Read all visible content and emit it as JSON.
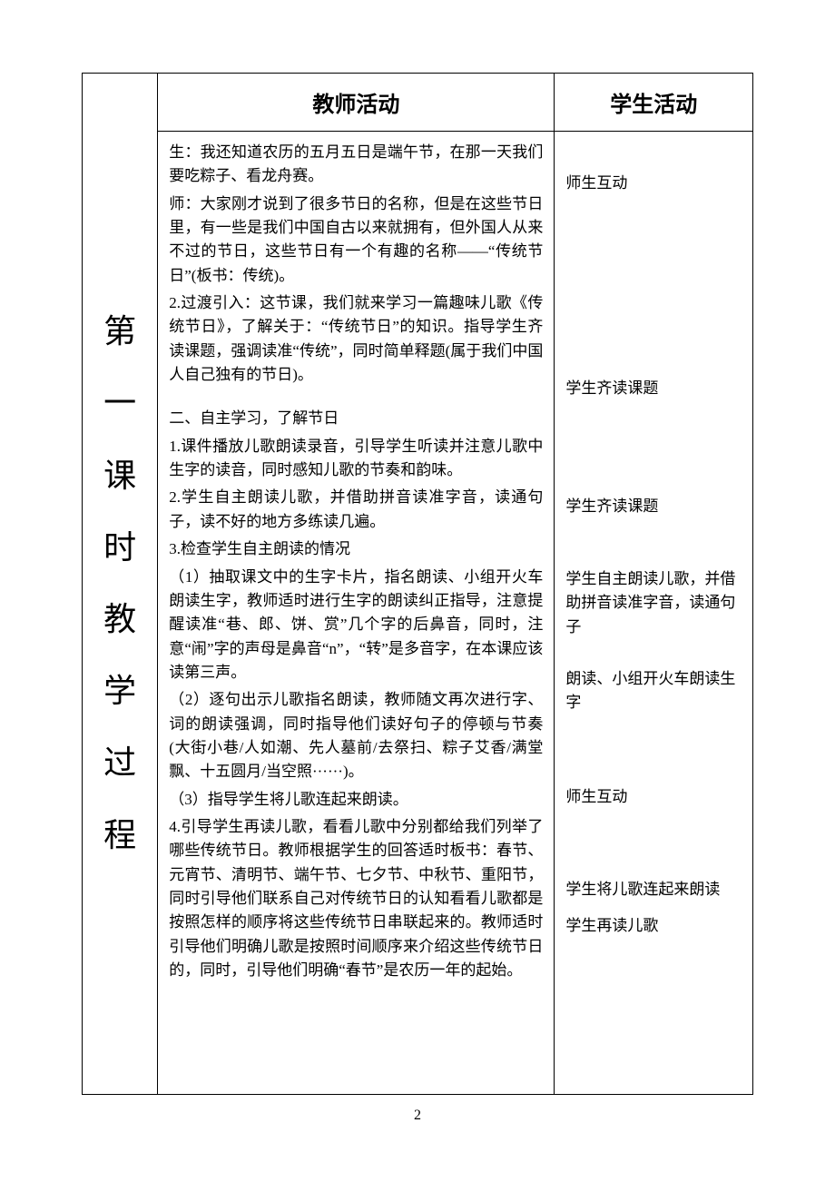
{
  "headers": {
    "side": "第一课时教学过程",
    "teacher": "教师活动",
    "student": "学生活动"
  },
  "teacher": {
    "p1": "生：我还知道农历的五月五日是端午节，在那一天我们要吃粽子、看龙舟赛。",
    "p2": "师：大家刚才说到了很多节日的名称，但是在这些节日里，有一些是我们中国自古以来就拥有，但外国人从来不过的节日，这些节日有一个有趣的名称——“传统节日”(板书：传统)。",
    "p3": "2.过渡引入：这节课，我们就来学习一篇趣味儿歌《传统节日》，了解关于：“传统节日”的知识。指导学生齐读课题，强调读准“传统”，同时简单释题(属于我们中国人自己独有的节日)。",
    "p4": "二、自主学习，了解节日",
    "p5": "1.课件播放儿歌朗读录音，引导学生听读并注意儿歌中生字的读音，同时感知儿歌的节奏和韵味。",
    "p6": "2.学生自主朗读儿歌，并借助拼音读准字音，读通句子，读不好的地方多练读几遍。",
    "p7": "3.检查学生自主朗读的情况",
    "p8": "（1）抽取课文中的生字卡片，指名朗读、小组开火车朗读生字，教师适时进行生字的朗读纠正指导，注意提醒读准“巷、郎、饼、赏”几个字的后鼻音，同时，注意“闹”字的声母是鼻音“n”，“转”是多音字，在本课应该读第三声。",
    "p9": "（2）逐句出示儿歌指名朗读，教师随文再次进行字、词的朗读强调，同时指导他们读好句子的停顿与节奏(大街小巷/人如潮、先人墓前/去祭扫、粽子艾香/满堂飘、十五圆月/当空照······)。",
    "p10": "（3）指导学生将儿歌连起来朗读。",
    "p11": "4.引导学生再读儿歌，看看儿歌中分别都给我们列举了哪些传统节日。教师根据学生的回答适时板书：春节、元宵节、清明节、端午节、七夕节、中秋节、重阳节，同时引导他们联系自己对传统节日的认知看看儿歌都是按照怎样的顺序将这些传统节日串联起来的。教师适时引导他们明确儿歌是按照时间顺序来介绍这些传统节日的，同时，引导他们明确“春节”是农历一年的起始。"
  },
  "student": {
    "s1": "师生互动",
    "s2": "学生齐读课题",
    "s3": "学生齐读课题",
    "s4": "学生自主朗读儿歌，并借助拼音读准字音，读通句子",
    "s5": "朗读、小组开火车朗读生字",
    "s6": "师生互动",
    "s7": "学生将儿歌连起来朗读",
    "s8": "学生再读儿歌"
  },
  "page_number": "2",
  "student_positions": {
    "s1": 44,
    "s2": 270,
    "s3": 400,
    "s4": 480,
    "s5": 590,
    "s6": 720,
    "s7": 822,
    "s8": 862
  }
}
